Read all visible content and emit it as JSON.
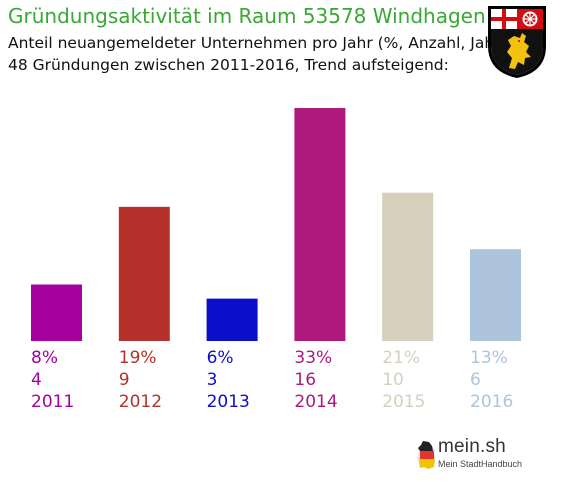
{
  "title": "Gründungsaktivität im Raum 53578 Windhagen",
  "subtitle_1": "Anteil neuangemeldeter Unternehmen pro Jahr (%, Anzahl, Jahr)",
  "subtitle_2": "48 Gründungen zwischen 2011-2016, Trend aufsteigend:",
  "crest_icon": "rhineland-palatinate-coat-of-arms",
  "logo": {
    "icon": "germany-map-icon",
    "name": "mein.sh",
    "tagline": "Mein StadtHandbuch"
  },
  "chart_data": {
    "type": "bar",
    "categories": [
      "2011",
      "2012",
      "2013",
      "2014",
      "2015",
      "2016"
    ],
    "values": [
      8,
      19,
      6,
      33,
      21,
      13
    ],
    "counts": [
      4,
      9,
      3,
      16,
      10,
      6
    ],
    "percent_labels": [
      "8%",
      "19%",
      "6%",
      "33%",
      "21%",
      "13%"
    ],
    "colors": [
      "#a6009f",
      "#b5312c",
      "#0b0fcc",
      "#ad1a7b",
      "#d5cfbc",
      "#aec3dc"
    ],
    "ylim": [
      0,
      33
    ],
    "grid": false,
    "legend": "none"
  }
}
